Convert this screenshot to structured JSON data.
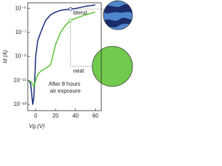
{
  "chart_data": {
    "type": "line",
    "xlabel": "Vg (V)",
    "ylabel": "Id (A)",
    "x": [
      -7,
      -5,
      -3,
      -2,
      -1,
      0,
      2,
      5,
      10,
      15,
      20,
      25,
      30,
      35,
      40,
      50,
      60
    ],
    "series": [
      {
        "name": "blend",
        "color": "#1a2f7a",
        "values": [
          1e-11,
          5e-12,
          1e-13,
          3e-13,
          1e-11,
          1e-09,
          2e-08,
          1e-07,
          1e-06,
          3e-06,
          5e-06,
          7e-06,
          8e-06,
          9e-06,
          1e-05,
          1.5e-05,
          2e-05
        ]
      },
      {
        "name": "neat",
        "color": "#5cc23a",
        "values": [
          1e-11,
          8e-12,
          5e-12,
          3e-12,
          5e-12,
          1e-11,
          3e-11,
          6e-11,
          1e-10,
          2e-10,
          1e-08,
          1e-07,
          4e-07,
          1e-06,
          1.5e-06,
          3e-06,
          5e-06
        ]
      }
    ],
    "log_y": true,
    "xlim": [
      -8,
      66
    ],
    "xticks": [
      0,
      20,
      40,
      60
    ],
    "ylim": [
      3e-14,
      3e-05
    ],
    "yticks": [
      {
        "value": 1e-13,
        "label": "10⁻¹³"
      },
      {
        "value": 1e-11,
        "label": "10⁻¹¹"
      },
      {
        "value": 1e-09,
        "label": "10⁻⁹"
      },
      {
        "value": 1e-07,
        "label": "10⁻⁷"
      },
      {
        "value": 1e-05,
        "label": "10⁻⁵"
      }
    ],
    "annotations": [
      "After 8 hours",
      "air exposure"
    ]
  }
}
